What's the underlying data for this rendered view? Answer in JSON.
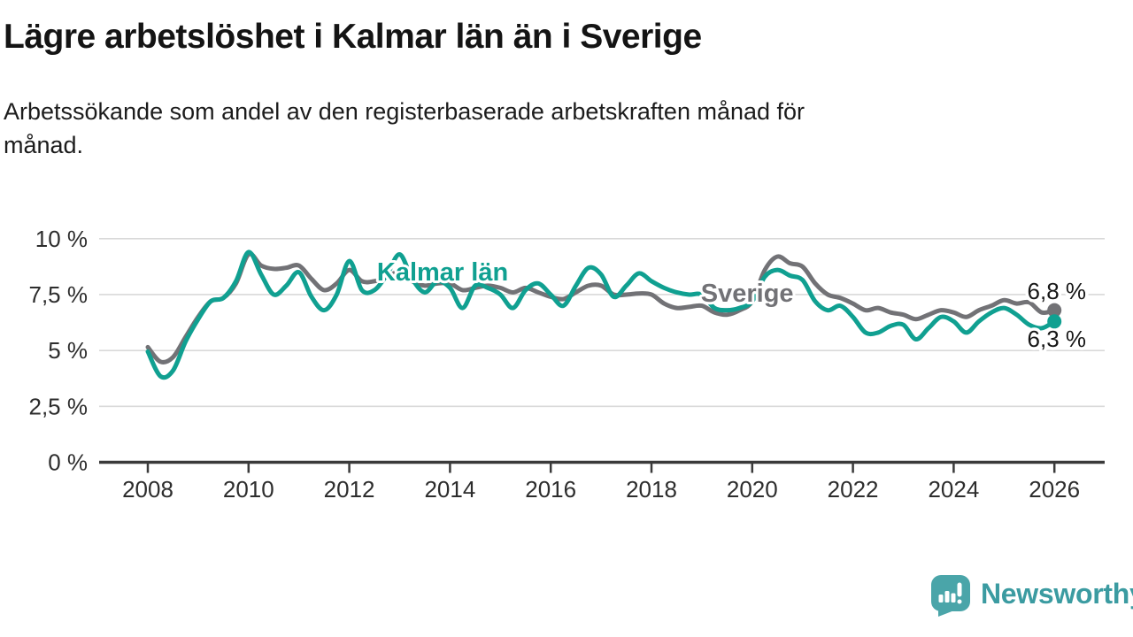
{
  "header": {
    "title": "Lägre arbetslöshet i Kalmar län än i Sverige",
    "subtitle": "Arbetssökande som andel av den registerbaserade arbetskraften månad för\nmånad."
  },
  "footer": {
    "brand": "Newsworthy",
    "logo_icon": "newsworthy-speech-bubble-bar-chart-icon"
  },
  "colors": {
    "kalmar": "#10a091",
    "sverige": "#727276",
    "grid": "#d9d9d9",
    "axis": "#3a3a3a",
    "tick_text": "#2d2d2d",
    "value_text": "#161616",
    "logo_fill": "#4aa5a9",
    "brand_text": "#3b9ba1"
  },
  "chart_data": {
    "type": "line",
    "title": "Lägre arbetslöshet i Kalmar län än i Sverige",
    "xlabel": "",
    "ylabel": "Arbetssökande som andel av den registerbaserade arbetskraften",
    "unit": "%",
    "grid": true,
    "legend_position": "inline-labels",
    "xlim": [
      2007.8,
      2027.0
    ],
    "ylim": [
      0,
      10
    ],
    "x_years": [
      2008,
      2008.25,
      2008.5,
      2008.75,
      2009,
      2009.25,
      2009.5,
      2009.75,
      2010,
      2010.25,
      2010.5,
      2010.75,
      2011,
      2011.25,
      2011.5,
      2011.75,
      2012,
      2012.25,
      2012.5,
      2012.75,
      2013,
      2013.25,
      2013.5,
      2013.75,
      2014,
      2014.25,
      2014.5,
      2014.75,
      2015,
      2015.25,
      2015.5,
      2015.75,
      2016,
      2016.25,
      2016.5,
      2016.75,
      2017,
      2017.25,
      2017.5,
      2017.75,
      2018,
      2018.25,
      2018.5,
      2018.75,
      2019,
      2019.25,
      2019.5,
      2019.75,
      2020,
      2020.25,
      2020.5,
      2020.75,
      2021,
      2021.25,
      2021.5,
      2021.75,
      2022,
      2022.25,
      2022.5,
      2022.75,
      2023,
      2023.25,
      2023.5,
      2023.75,
      2024,
      2024.25,
      2024.5,
      2024.75,
      2025,
      2025.25,
      2025.5,
      2025.75,
      2026
    ],
    "series": [
      {
        "name": "Sverige",
        "color_key": "sverige",
        "end_value_label": "6,8 %",
        "values": [
          5.15,
          4.5,
          4.7,
          5.6,
          6.5,
          7.2,
          7.35,
          8.0,
          9.3,
          8.8,
          8.65,
          8.7,
          8.8,
          8.2,
          7.7,
          8.0,
          8.6,
          8.1,
          8.1,
          8.3,
          8.5,
          8.1,
          7.9,
          8.0,
          8.0,
          7.7,
          7.8,
          7.9,
          7.8,
          7.6,
          7.8,
          7.6,
          7.4,
          7.3,
          7.6,
          7.9,
          7.9,
          7.5,
          7.5,
          7.55,
          7.5,
          7.1,
          6.9,
          6.95,
          7.0,
          6.7,
          6.6,
          6.8,
          7.2,
          8.6,
          9.2,
          8.9,
          8.75,
          8.0,
          7.5,
          7.35,
          7.1,
          6.8,
          6.9,
          6.7,
          6.6,
          6.4,
          6.6,
          6.8,
          6.7,
          6.5,
          6.8,
          7.0,
          7.25,
          7.1,
          7.15,
          6.7,
          6.8
        ]
      },
      {
        "name": "Kalmar län",
        "color_key": "kalmar",
        "end_value_label": "6,3 %",
        "values": [
          4.95,
          3.85,
          4.1,
          5.4,
          6.4,
          7.2,
          7.35,
          8.1,
          9.4,
          8.4,
          7.5,
          7.9,
          8.5,
          7.4,
          6.8,
          7.5,
          9.0,
          7.7,
          7.7,
          8.4,
          9.3,
          8.2,
          7.6,
          8.1,
          7.8,
          6.9,
          7.9,
          7.8,
          7.5,
          6.9,
          7.7,
          8.0,
          7.5,
          7.0,
          7.9,
          8.7,
          8.4,
          7.4,
          7.9,
          8.45,
          8.1,
          7.8,
          7.6,
          7.5,
          7.5,
          6.9,
          6.8,
          6.9,
          7.2,
          8.3,
          8.6,
          8.35,
          8.15,
          7.2,
          6.8,
          7.0,
          6.5,
          5.8,
          5.8,
          6.1,
          6.15,
          5.5,
          6.0,
          6.5,
          6.3,
          5.8,
          6.3,
          6.7,
          6.9,
          6.6,
          6.15,
          6.0,
          6.3
        ]
      }
    ],
    "y_ticks": [
      {
        "value": 0,
        "label": "0 %"
      },
      {
        "value": 2.5,
        "label": "2,5 %"
      },
      {
        "value": 5,
        "label": "5 %"
      },
      {
        "value": 7.5,
        "label": "7,5 %"
      },
      {
        "value": 10,
        "label": "10 %"
      }
    ],
    "x_ticks": [
      {
        "value": 2008,
        "label": "2008"
      },
      {
        "value": 2010,
        "label": "2010"
      },
      {
        "value": 2012,
        "label": "2012"
      },
      {
        "value": 2014,
        "label": "2014"
      },
      {
        "value": 2016,
        "label": "2016"
      },
      {
        "value": 2018,
        "label": "2018"
      },
      {
        "value": 2020,
        "label": "2020"
      },
      {
        "value": 2022,
        "label": "2022"
      },
      {
        "value": 2024,
        "label": "2024"
      },
      {
        "value": 2026,
        "label": "2026"
      }
    ],
    "series_labels": [
      {
        "text": "Kalmar län",
        "year": 2012.55,
        "pct": 8.13,
        "color_key": "kalmar"
      },
      {
        "text": "Sverige",
        "year": 2018.98,
        "pct": 7.18,
        "color_key": "sverige"
      }
    ],
    "end_labels": [
      {
        "text": "6,8 %",
        "year": 2026.63,
        "pct": 7.3
      },
      {
        "text": "6,3 %",
        "year": 2026.63,
        "pct": 5.16
      }
    ]
  }
}
